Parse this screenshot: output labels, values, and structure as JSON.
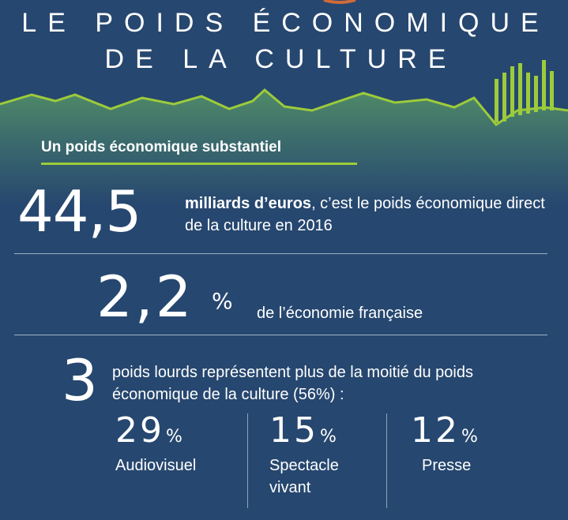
{
  "title": {
    "line1": "LE POIDS ÉCONOMIQUE",
    "line2": "DE LA CULTURE"
  },
  "subtitle": "Un poids économique substantiel",
  "stat1": {
    "value": "44,5",
    "bold": "milliards d’euros",
    "rest": ", c’est le poids économique direct de la culture en 2016"
  },
  "stat2": {
    "value": "2,2",
    "unit": "%",
    "text": "de l’économie française"
  },
  "stat3": {
    "value": "3",
    "text": "poids lourds représentent plus de la moitié du poids économique de la culture (56%) :"
  },
  "categories": [
    {
      "value": "29",
      "unit": "%",
      "label": "Audiovisuel"
    },
    {
      "value": "15",
      "unit": "%",
      "label": "Spectacle vivant"
    },
    {
      "value": "12",
      "unit": "%",
      "label": "Presse"
    }
  ],
  "colors": {
    "background": "#26476f",
    "accent_green": "#9ccb3b",
    "hill_green": "#5f8f70"
  }
}
